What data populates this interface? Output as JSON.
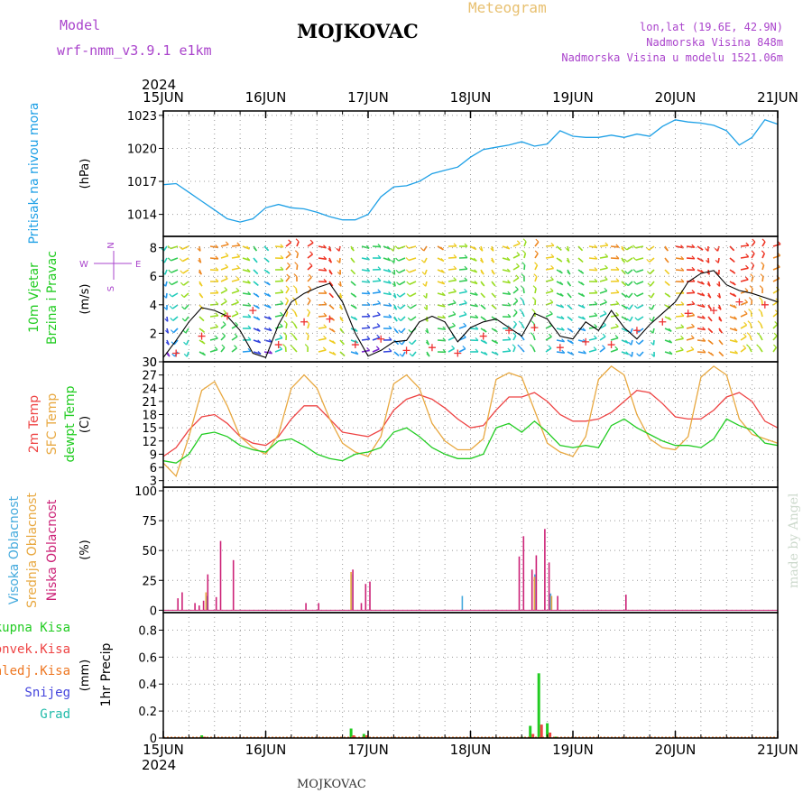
{
  "header": {
    "model_label": "Model",
    "model_name": "wrf-nmm_v3.9.1 e1km",
    "station": "MOJKOVAC",
    "product": "Meteogram",
    "lonlat": "lon,lat (19.6E, 42.9N)",
    "altitude": "Nadmorska Visina 848m",
    "model_altitude": "Nadmorska Visina u modelu 1521.06m",
    "footer_station": "MOJKOVAC",
    "credit": "made by Angel"
  },
  "colors": {
    "pressure": "#1ea0e6",
    "temp2m": "#ee4444",
    "sfc_temp": "#e8a840",
    "dewpoint": "#22cc22",
    "high_cloud": "#44aadd",
    "mid_cloud": "#e8a840",
    "low_cloud": "#cc2277",
    "total_precip": "#22cc22",
    "conv_precip": "#ee4444",
    "frozen_precip": "#ee7722",
    "snow": "#4444dd",
    "hail": "#22bbaa",
    "header_purple": "#aa44cc",
    "wind_speed_line": "#000000",
    "gust_marker": "#ee3333"
  },
  "chart_data": [
    {
      "panel": "pressure",
      "type": "line",
      "ylabel": "Pritisak na nivou mora",
      "unit": "(hPa)",
      "ylim": [
        1012,
        1023.4
      ],
      "yticks": [
        1014,
        1017,
        1020,
        1023
      ],
      "x_hours": [
        0,
        3,
        6,
        9,
        12,
        15,
        18,
        21,
        24,
        27,
        30,
        33,
        36,
        39,
        42,
        45,
        48,
        51,
        54,
        57,
        60,
        63,
        66,
        69,
        72,
        75,
        78,
        81,
        84,
        87,
        90,
        93,
        96,
        99,
        102,
        105,
        108,
        111,
        114,
        117,
        120,
        123,
        126,
        129,
        132,
        135,
        138,
        141,
        144
      ],
      "values": [
        1016.7,
        1016.8,
        1016.0,
        1015.2,
        1014.4,
        1013.6,
        1013.3,
        1013.6,
        1014.6,
        1014.9,
        1014.6,
        1014.5,
        1014.2,
        1013.8,
        1013.5,
        1013.5,
        1014.0,
        1015.6,
        1016.5,
        1016.6,
        1017.0,
        1017.7,
        1018.0,
        1018.3,
        1019.2,
        1019.9,
        1020.1,
        1020.3,
        1020.6,
        1020.2,
        1020.4,
        1021.6,
        1021.1,
        1021.0,
        1021.0,
        1021.2,
        1021.0,
        1021.3,
        1021.1,
        1022.0,
        1022.6,
        1022.4,
        1022.3,
        1022.1,
        1021.6,
        1020.3,
        1021.0,
        1022.6,
        1022.2
      ],
      "grid": true
    },
    {
      "panel": "wind",
      "type": "line",
      "ylabel": "10m Vjetar Brzina i Pravac",
      "unit": "(m/s)",
      "compass": [
        "N",
        "W",
        "E",
        "S"
      ],
      "ylim": [
        0,
        8.8
      ],
      "yticks": [
        0,
        2,
        4,
        6,
        8
      ],
      "x_hours": [
        0,
        3,
        6,
        9,
        12,
        15,
        18,
        21,
        24,
        27,
        30,
        33,
        36,
        39,
        42,
        45,
        48,
        51,
        54,
        57,
        60,
        63,
        66,
        69,
        72,
        75,
        78,
        81,
        84,
        87,
        90,
        93,
        96,
        99,
        102,
        105,
        108,
        111,
        114,
        117,
        120,
        123,
        126,
        129,
        132,
        135,
        138,
        141,
        144
      ],
      "values": [
        0.3,
        1.5,
        2.8,
        3.8,
        3.6,
        3.2,
        2.2,
        0.6,
        0.3,
        2.6,
        4.2,
        4.8,
        5.2,
        5.5,
        4.2,
        2.0,
        0.4,
        0.8,
        1.4,
        1.5,
        2.8,
        3.2,
        2.8,
        1.4,
        2.4,
        2.8,
        3.0,
        2.4,
        1.8,
        3.4,
        3.0,
        1.8,
        1.6,
        2.8,
        2.2,
        3.6,
        2.4,
        1.6,
        2.6,
        3.4,
        4.2,
        5.6,
        6.2,
        6.4,
        5.4,
        5.0,
        4.8,
        4.5,
        4.2
      ],
      "gust_x_hours": [
        3,
        9,
        15,
        21,
        27,
        33,
        39,
        45,
        51,
        57,
        63,
        69,
        75,
        81,
        87,
        93,
        99,
        105,
        111,
        117,
        123,
        129,
        135,
        141
      ],
      "gust_values": [
        0.6,
        1.8,
        3.2,
        3.6,
        1.2,
        2.8,
        3.0,
        1.2,
        1.6,
        0.8,
        1.0,
        0.6,
        1.8,
        2.2,
        2.4,
        1.0,
        1.4,
        1.2,
        2.2,
        2.8,
        3.4,
        3.6,
        4.2,
        4.0
      ],
      "grid": true
    },
    {
      "panel": "temperature",
      "type": "line",
      "ylabel": [
        "2m Temp",
        "SFC Temp",
        "dewpt Temp"
      ],
      "unit": "(C)",
      "ylim": [
        1.5,
        30
      ],
      "yticks": [
        3,
        6,
        9,
        12,
        15,
        18,
        21,
        24,
        27,
        30
      ],
      "x_hours": [
        0,
        3,
        6,
        9,
        12,
        15,
        18,
        21,
        24,
        27,
        30,
        33,
        36,
        39,
        42,
        45,
        48,
        51,
        54,
        57,
        60,
        63,
        66,
        69,
        72,
        75,
        78,
        81,
        84,
        87,
        90,
        93,
        96,
        99,
        102,
        105,
        108,
        111,
        114,
        117,
        120,
        123,
        126,
        129,
        132,
        135,
        138,
        141,
        144
      ],
      "series": [
        {
          "name": "2m Temp",
          "values": [
            8.5,
            10.5,
            14.5,
            17.5,
            18.0,
            16.0,
            13.0,
            11.5,
            11.0,
            13.0,
            17.0,
            20.0,
            20.0,
            17.0,
            14.0,
            13.5,
            13.0,
            14.5,
            19.0,
            21.5,
            22.5,
            21.5,
            19.5,
            17.0,
            15.0,
            15.5,
            19.0,
            22.0,
            22.0,
            23.0,
            21.0,
            18.0,
            16.5,
            16.5,
            17.0,
            18.5,
            21.0,
            23.5,
            23.0,
            20.5,
            17.5,
            17.0,
            17.0,
            19.0,
            22.0,
            23.0,
            21.0,
            16.5,
            15.0
          ]
        },
        {
          "name": "SFC Temp",
          "values": [
            7.0,
            4.0,
            13.0,
            23.5,
            25.5,
            20.0,
            13.0,
            10.5,
            9.0,
            13.5,
            24.0,
            27.0,
            24.0,
            17.0,
            11.5,
            9.5,
            8.5,
            13.0,
            25.0,
            27.0,
            24.0,
            16.0,
            12.0,
            10.0,
            10.0,
            12.5,
            26.0,
            27.5,
            26.5,
            19.0,
            11.5,
            9.5,
            8.5,
            13.0,
            26.0,
            29.0,
            27.0,
            18.0,
            12.5,
            10.5,
            10.0,
            13.0,
            26.5,
            29.0,
            27.0,
            17.0,
            13.5,
            12.5,
            11.5
          ]
        },
        {
          "name": "dewpt Temp",
          "values": [
            7.5,
            7.0,
            9.0,
            13.5,
            14.0,
            13.0,
            11.0,
            10.0,
            9.5,
            12.0,
            12.5,
            11.0,
            9.0,
            8.0,
            7.5,
            9.0,
            9.5,
            10.5,
            14.0,
            15.0,
            13.0,
            10.5,
            9.0,
            8.0,
            8.0,
            9.0,
            15.0,
            16.0,
            14.0,
            16.5,
            14.0,
            11.0,
            10.5,
            11.0,
            10.5,
            15.5,
            17.0,
            15.0,
            13.5,
            12.0,
            11.0,
            11.0,
            10.5,
            12.5,
            17.0,
            15.5,
            14.5,
            11.5,
            11.0
          ]
        }
      ],
      "grid": true
    },
    {
      "panel": "cloud",
      "type": "bar",
      "ylabel": [
        "Visoka Oblacnost",
        "Srednja Oblacnost",
        "Niska Oblacnost"
      ],
      "unit": "(%)",
      "ylim": [
        -2,
        103
      ],
      "yticks": [
        0,
        25,
        50,
        75,
        100
      ],
      "series": [
        {
          "name": "Visoka Oblacnost",
          "bars": [
            [
              10.5,
              12
            ],
            [
              44.5,
              30
            ],
            [
              70.5,
              12
            ],
            [
              87.5,
              30
            ],
            [
              91.2,
              14
            ]
          ]
        },
        {
          "name": "Srednja Oblacnost",
          "bars": [
            [
              10.0,
              15
            ],
            [
              44.0,
              32
            ],
            [
              87.0,
              28
            ],
            [
              91.0,
              12
            ]
          ]
        },
        {
          "name": "Niska Oblacnost",
          "bars": [
            [
              3,
              10
            ],
            [
              4,
              15
            ],
            [
              7,
              6
            ],
            [
              8,
              4
            ],
            [
              9,
              8
            ],
            [
              10,
              30
            ],
            [
              12,
              11
            ],
            [
              13,
              58
            ],
            [
              16,
              42
            ],
            [
              33,
              6
            ],
            [
              36,
              6
            ],
            [
              44,
              34
            ],
            [
              46,
              6
            ],
            [
              47,
              22
            ],
            [
              48,
              24
            ],
            [
              83,
              45
            ],
            [
              84,
              62
            ],
            [
              86,
              34
            ],
            [
              87,
              46
            ],
            [
              89,
              68
            ],
            [
              90,
              40
            ],
            [
              92,
              12
            ],
            [
              108,
              13
            ]
          ]
        }
      ],
      "grid": true
    },
    {
      "panel": "precipitation",
      "type": "bar",
      "ylabel": "1hr Precip",
      "unit": "(mm)",
      "legend": [
        "Ukupna Kisa",
        "Konvek.Kisa",
        "Zaledj.Kisa",
        "Snijeg",
        "Grad"
      ],
      "ylim": [
        0,
        0.93
      ],
      "yticks": [
        0,
        0.2,
        0.4,
        0.6,
        0.8
      ],
      "series": [
        {
          "name": "Ukupna Kisa",
          "bars": [
            [
              9,
              0.02
            ],
            [
              44,
              0.07
            ],
            [
              47,
              0.03
            ],
            [
              84,
              0.01
            ],
            [
              86,
              0.09
            ],
            [
              88,
              0.48
            ],
            [
              90,
              0.11
            ],
            [
              92,
              0.01
            ]
          ]
        },
        {
          "name": "Konvek.Kisa",
          "bars": [
            [
              9,
              0.01
            ],
            [
              44,
              0.02
            ],
            [
              47,
              0.02
            ],
            [
              86,
              0.03
            ],
            [
              88,
              0.1
            ],
            [
              90,
              0.04
            ]
          ]
        }
      ],
      "grid": true
    }
  ],
  "time_axis": {
    "year": "2024",
    "labels": [
      "15JUN",
      "16JUN",
      "17JUN",
      "18JUN",
      "19JUN",
      "20JUN",
      "21JUN"
    ]
  }
}
